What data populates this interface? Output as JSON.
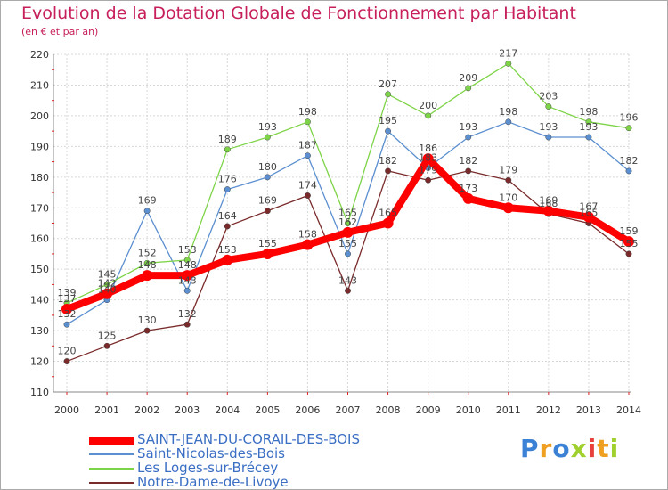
{
  "chart_data": {
    "type": "line",
    "title": "Evolution de la Dotation Globale de Fonctionnement par Habitant",
    "subtitle": "(en € et par an)",
    "xlabel": "",
    "ylabel": "",
    "x": [
      "2000",
      "2001",
      "2002",
      "2003",
      "2004",
      "2005",
      "2006",
      "2007",
      "2008",
      "2009",
      "2010",
      "2011",
      "2012",
      "2013",
      "2014"
    ],
    "ylim": [
      110,
      220
    ],
    "yticks": [
      "110",
      "120",
      "130",
      "140",
      "150",
      "160",
      "170",
      "180",
      "190",
      "200",
      "210",
      "220"
    ],
    "grid": true,
    "series": [
      {
        "name": "SAINT-JEAN-DU-CORAIL-DES-BOIS",
        "color": "#ff0000",
        "values": [
          137,
          142,
          148,
          148,
          153,
          155,
          158,
          162,
          165,
          186,
          173,
          170,
          169,
          167,
          159
        ]
      },
      {
        "name": "Saint-Nicolas-des-Bois",
        "color": "#5b8fd0",
        "values": [
          132,
          140,
          169,
          143,
          176,
          180,
          187,
          155,
          195,
          183,
          193,
          198,
          193,
          193,
          182
        ]
      },
      {
        "name": "Les Loges-sur-Brécey",
        "color": "#7ed448",
        "values": [
          139,
          145,
          152,
          153,
          189,
          193,
          198,
          165,
          207,
          200,
          209,
          217,
          203,
          198,
          196
        ]
      },
      {
        "name": "Notre-Dame-de-Livoye",
        "color": "#7a2a2a",
        "values": [
          120,
          125,
          130,
          132,
          164,
          169,
          174,
          143,
          182,
          179,
          182,
          179,
          168,
          165,
          155
        ]
      }
    ]
  },
  "logo": {
    "letters": [
      "P",
      "r",
      "o",
      "x",
      "i",
      "t",
      "i"
    ],
    "colors": [
      "#3b82d6",
      "#f0a020",
      "#3b82d6",
      "#9fd02e",
      "#e8403c",
      "#f0a020",
      "#9fd02e"
    ]
  }
}
